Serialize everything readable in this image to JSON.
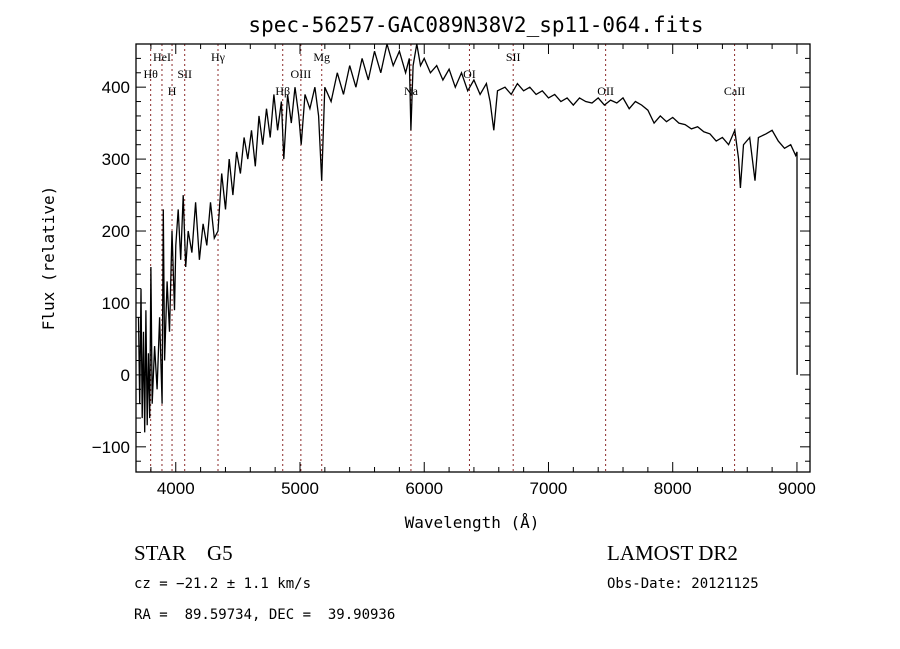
{
  "chart_data": {
    "type": "line",
    "title": "spec-56257-GAC089N38V2_sp11-064.fits",
    "xlabel": "Wavelength (Å)",
    "ylabel": "Flux (relative)",
    "xlim": [
      3680,
      9105
    ],
    "ylim": [
      -135,
      460
    ],
    "xticks": [
      4000,
      5000,
      6000,
      7000,
      8000,
      9000
    ],
    "yticks": [
      -100,
      0,
      100,
      200,
      300,
      400
    ],
    "grid": false,
    "series": [
      {
        "name": "spectrum",
        "wavelength": [
          3700,
          3710,
          3720,
          3730,
          3740,
          3750,
          3760,
          3770,
          3780,
          3790,
          3800,
          3810,
          3830,
          3850,
          3870,
          3890,
          3900,
          3910,
          3930,
          3950,
          3970,
          3990,
          4000,
          4020,
          4040,
          4060,
          4080,
          4100,
          4130,
          4160,
          4190,
          4220,
          4250,
          4280,
          4310,
          4340,
          4370,
          4400,
          4430,
          4460,
          4490,
          4520,
          4550,
          4580,
          4610,
          4640,
          4670,
          4700,
          4730,
          4760,
          4790,
          4820,
          4850,
          4870,
          4900,
          4930,
          4960,
          4990,
          5010,
          5040,
          5080,
          5120,
          5150,
          5175,
          5200,
          5250,
          5300,
          5350,
          5400,
          5450,
          5500,
          5550,
          5600,
          5650,
          5700,
          5750,
          5800,
          5850,
          5880,
          5893,
          5910,
          5940,
          5970,
          6000,
          6050,
          6100,
          6150,
          6200,
          6250,
          6300,
          6350,
          6400,
          6450,
          6500,
          6530,
          6560,
          6590,
          6650,
          6700,
          6750,
          6800,
          6850,
          6900,
          6950,
          7000,
          7050,
          7100,
          7150,
          7200,
          7250,
          7300,
          7350,
          7400,
          7450,
          7500,
          7550,
          7600,
          7650,
          7700,
          7750,
          7800,
          7850,
          7900,
          7950,
          8000,
          8050,
          8100,
          8150,
          8200,
          8250,
          8300,
          8350,
          8400,
          8450,
          8500,
          8530,
          8545,
          8570,
          8620,
          8662,
          8690,
          8750,
          8800,
          8850,
          8900,
          8950,
          8990,
          9000,
          9001
        ],
        "flux": [
          80,
          -40,
          120,
          -60,
          60,
          -80,
          90,
          -70,
          30,
          -60,
          150,
          -40,
          40,
          -20,
          80,
          -40,
          230,
          20,
          130,
          60,
          200,
          90,
          180,
          230,
          160,
          250,
          150,
          200,
          170,
          240,
          160,
          210,
          180,
          240,
          190,
          200,
          280,
          230,
          300,
          250,
          310,
          280,
          330,
          300,
          340,
          290,
          360,
          320,
          370,
          330,
          390,
          340,
          380,
          300,
          390,
          350,
          400,
          360,
          320,
          390,
          370,
          400,
          360,
          270,
          400,
          380,
          420,
          390,
          430,
          400,
          440,
          410,
          450,
          420,
          460,
          430,
          450,
          420,
          440,
          340,
          430,
          460,
          430,
          440,
          420,
          430,
          410,
          425,
          400,
          420,
          395,
          410,
          390,
          405,
          380,
          340,
          395,
          400,
          390,
          405,
          395,
          400,
          390,
          395,
          385,
          390,
          380,
          385,
          375,
          385,
          380,
          378,
          385,
          375,
          382,
          378,
          385,
          370,
          380,
          375,
          368,
          350,
          360,
          352,
          358,
          350,
          348,
          342,
          345,
          338,
          335,
          325,
          330,
          320,
          340,
          300,
          260,
          320,
          330,
          270,
          330,
          335,
          340,
          325,
          315,
          320,
          305,
          310,
          0
        ]
      }
    ],
    "lines": [
      {
        "label": "Hθ",
        "wavelength": 3798,
        "row": 2
      },
      {
        "label": "HeI",
        "wavelength": 3889,
        "row": 1
      },
      {
        "label": "H",
        "wavelength": 3970,
        "row": 3
      },
      {
        "label": "SII",
        "wavelength": 4072,
        "row": 2
      },
      {
        "label": "Hγ",
        "wavelength": 4340,
        "row": 1
      },
      {
        "label": "Hβ",
        "wavelength": 4861,
        "row": 3
      },
      {
        "label": "OIII",
        "wavelength": 5007,
        "row": 2
      },
      {
        "label": "Mg",
        "wavelength": 5175,
        "row": 1
      },
      {
        "label": "Na",
        "wavelength": 5893,
        "row": 3
      },
      {
        "label": "OI",
        "wavelength": 6364,
        "row": 2
      },
      {
        "label": "SII",
        "wavelength": 6716,
        "row": 1
      },
      {
        "label": "OII",
        "wavelength": 7460,
        "row": 3
      },
      {
        "label": "CaII",
        "wavelength": 8498,
        "row": 3
      }
    ],
    "colors": {
      "spectrum": "#000000",
      "lines": "#8b2a2a"
    }
  },
  "info": {
    "object": "STAR    G5",
    "survey": "LAMOST DR2",
    "cz": "cz = −21.2 ± 1.1 km/s",
    "obs_date": "Obs-Date: 20121125",
    "coords": "RA =  89.59734, DEC =  39.90936"
  }
}
